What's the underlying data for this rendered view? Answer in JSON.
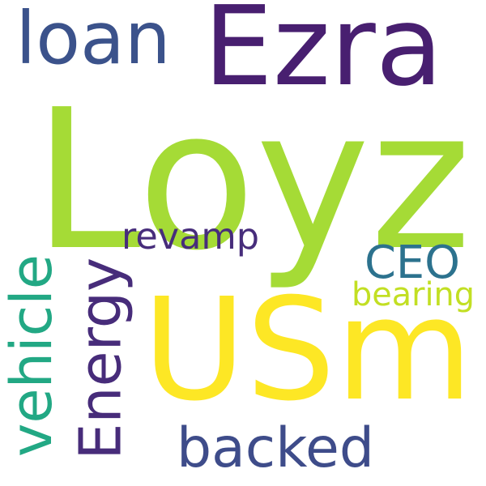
{
  "background": "#ffffff",
  "words": [
    {
      "id": "ezra",
      "text": "Ezra",
      "color": "#481f70"
    },
    {
      "id": "loan",
      "text": "loan",
      "color": "#3b528b"
    },
    {
      "id": "loyz",
      "text": "Loyz",
      "color": "#a5db36"
    },
    {
      "id": "revamp",
      "text": "revamp",
      "color": "#472d7b"
    },
    {
      "id": "ceo",
      "text": "CEO",
      "color": "#2c728e"
    },
    {
      "id": "bearing",
      "text": "bearing",
      "color": "#c2df23"
    },
    {
      "id": "usm",
      "text": "USm",
      "color": "#fde725"
    },
    {
      "id": "vehicle",
      "text": "vehicle",
      "color": "#22a884"
    },
    {
      "id": "energy",
      "text": "Energy",
      "color": "#472c7a"
    },
    {
      "id": "backed",
      "text": "backed",
      "color": "#3e4c8a"
    }
  ]
}
